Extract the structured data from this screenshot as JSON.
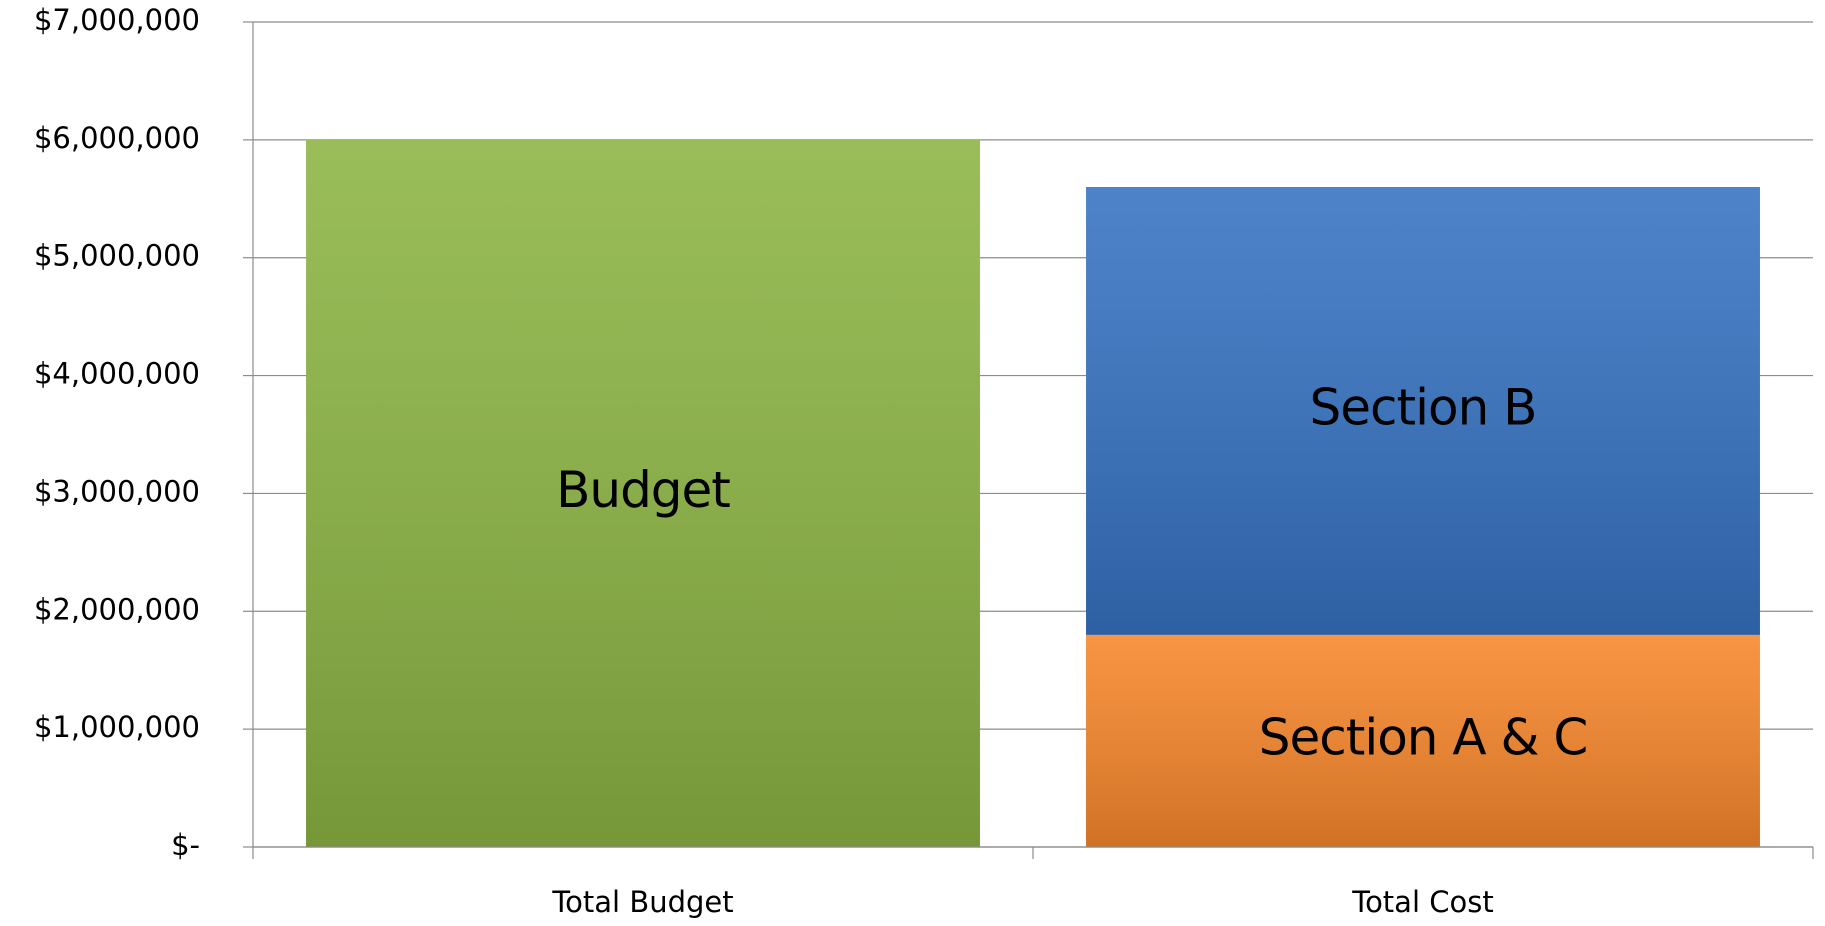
{
  "chart_data": {
    "type": "stacked_bar",
    "categories": [
      "Total Budget",
      "Total Cost"
    ],
    "series": [
      {
        "name": "Budget",
        "color": "#8cb443",
        "values": [
          6000000,
          null
        ]
      },
      {
        "name": "Section A & C",
        "color": "#f7862a",
        "values": [
          null,
          1800000
        ]
      },
      {
        "name": "Section B",
        "color": "#3572c2",
        "values": [
          null,
          3800000
        ]
      }
    ],
    "ylim": [
      0,
      7000000
    ],
    "yticks": [
      {
        "value": 0,
        "label": "$-"
      },
      {
        "value": 1000000,
        "label": "$1,000,000"
      },
      {
        "value": 2000000,
        "label": "$2,000,000"
      },
      {
        "value": 3000000,
        "label": "$3,000,000"
      },
      {
        "value": 4000000,
        "label": "$4,000,000"
      },
      {
        "value": 5000000,
        "label": "$5,000,000"
      },
      {
        "value": 6000000,
        "label": "$6,000,000"
      },
      {
        "value": 7000000,
        "label": "$7,000,000"
      }
    ],
    "grid": true
  }
}
